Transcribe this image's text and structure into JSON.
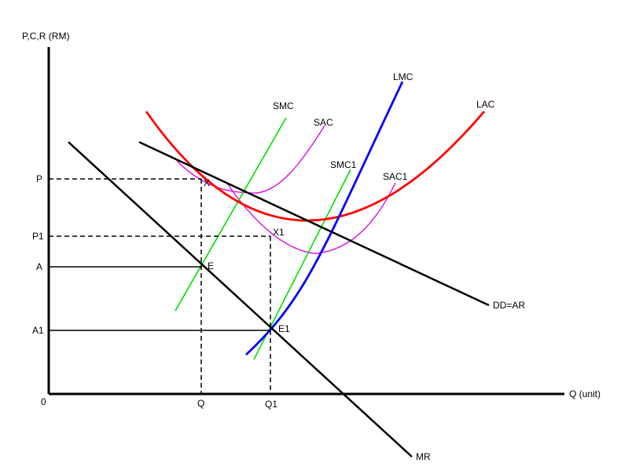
{
  "axes": {
    "y_label": "P,C,R (RM)",
    "x_label": "Q (unit)",
    "origin": "0"
  },
  "y_ticks": {
    "p": "P",
    "p1": "P1",
    "a": "A",
    "a1": "A1"
  },
  "x_ticks": {
    "q": "Q",
    "q1": "Q1"
  },
  "curves": {
    "lmc": "LMC",
    "lac": "LAC",
    "smc": "SMC",
    "sac": "SAC",
    "smc1": "SMC1",
    "sac1": "SAC1",
    "dd": "DD=AR",
    "mr": "MR"
  },
  "points": {
    "x": "X",
    "x1": "X1",
    "e": "E",
    "e1": "E1"
  },
  "colors": {
    "lmc": "#0000ff",
    "lac": "#ff0000",
    "smc": "#00dd00",
    "sac": "#dd00dd",
    "axis": "#000000"
  }
}
